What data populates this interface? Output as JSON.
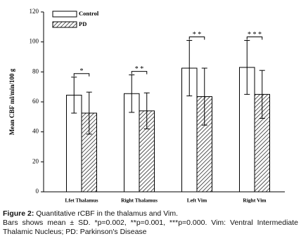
{
  "chart_data": {
    "type": "bar",
    "categories": [
      "Lfet Thalamus",
      "Right Thalamus",
      "Left Vim",
      "Right Vim"
    ],
    "series": [
      {
        "name": "Control",
        "color": "#ffffff",
        "values": [
          64.5,
          65.5,
          82.5,
          83
        ],
        "errors": [
          12,
          12.5,
          18.5,
          18
        ]
      },
      {
        "name": "PD",
        "color": "hatch",
        "values": [
          52.5,
          54,
          63.5,
          65
        ],
        "errors": [
          14,
          12,
          19,
          16
        ]
      }
    ],
    "annotations": [
      "*",
      "* *",
      "* *",
      "* * *"
    ],
    "ylabel": "Mean CBF ml/min/100 g",
    "ylim": [
      0,
      120
    ],
    "yticks": [
      0,
      20,
      40,
      60,
      80,
      100,
      120
    ]
  },
  "caption": {
    "label": "Figure 2:",
    "title": "Quantitative rCBF in the thalamus and Vim.",
    "body": "Bars shows mean ± SD. *p=0.002, **p=0.001, ***p=0.000. Vim: Ventral Intermediate Thalamic Nucleus; PD: Parkinson's Disease"
  }
}
